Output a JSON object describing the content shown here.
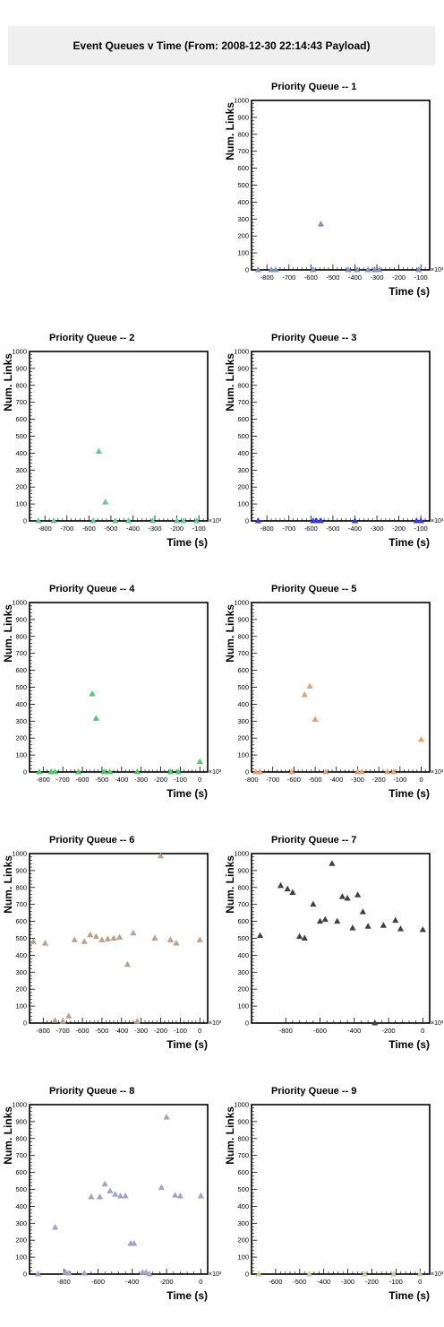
{
  "header": {
    "title": "Event Queues v Time (From: 2008-12-30 22:14:43 Payload)"
  },
  "chart_data": [
    {
      "type": "scatter",
      "title": "Priority Queue -- 1",
      "xlabel": "Time (s)",
      "ylabel": "Num. Links",
      "x_exponent": "×10³",
      "xlim": [
        -870,
        -60
      ],
      "ylim": [
        0,
        1000
      ],
      "xticks": [
        -800,
        -700,
        -600,
        -500,
        -400,
        -300,
        -200,
        -100
      ],
      "yticks": [
        0,
        100,
        200,
        300,
        400,
        500,
        600,
        700,
        800,
        900,
        1000
      ],
      "color": "#7f93bd",
      "x": [
        -840,
        -780,
        -760,
        -590,
        -555,
        -430,
        -390,
        -340,
        -310,
        -290,
        -110
      ],
      "y": [
        0,
        0,
        0,
        0,
        270,
        0,
        0,
        0,
        0,
        0,
        0
      ]
    },
    {
      "type": "scatter",
      "title": "Priority Queue -- 2",
      "xlabel": "Time (s)",
      "ylabel": "Num. Links",
      "x_exponent": "×10³",
      "xlim": [
        -870,
        -60
      ],
      "ylim": [
        0,
        1000
      ],
      "xticks": [
        -800,
        -700,
        -600,
        -500,
        -400,
        -300,
        -200,
        -100
      ],
      "yticks": [
        0,
        100,
        200,
        300,
        400,
        500,
        600,
        700,
        800,
        900,
        1000
      ],
      "color": "#6cc49a",
      "x": [
        -830,
        -760,
        -580,
        -555,
        -525,
        -480,
        -420,
        -310,
        -200,
        -170,
        -110
      ],
      "y": [
        0,
        0,
        0,
        410,
        110,
        0,
        0,
        0,
        0,
        0,
        0
      ]
    },
    {
      "type": "scatter",
      "title": "Priority Queue -- 3",
      "xlabel": "Time (s)",
      "ylabel": "Num. Links",
      "x_exponent": "×10³",
      "xlim": [
        -870,
        -60
      ],
      "ylim": [
        0,
        1000
      ],
      "xticks": [
        -800,
        -700,
        -600,
        -500,
        -400,
        -300,
        -200,
        -100
      ],
      "yticks": [
        0,
        100,
        200,
        300,
        400,
        500,
        600,
        700,
        800,
        900,
        1000
      ],
      "color": "#3a3ad0",
      "x": [
        -840,
        -590,
        -575,
        -555,
        -400,
        -120,
        -100
      ],
      "y": [
        0,
        0,
        0,
        0,
        0,
        0,
        0
      ]
    },
    {
      "type": "scatter",
      "title": "Priority Queue -- 4",
      "xlabel": "Time (s)",
      "ylabel": "Num. Links",
      "x_exponent": "×10³",
      "xlim": [
        -870,
        40
      ],
      "ylim": [
        0,
        1000
      ],
      "xticks": [
        -800,
        -700,
        -600,
        -500,
        -400,
        -300,
        -200,
        -100,
        0
      ],
      "yticks": [
        0,
        100,
        200,
        300,
        400,
        500,
        600,
        700,
        800,
        900,
        1000
      ],
      "color": "#4fc86a",
      "x": [
        -820,
        -760,
        -740,
        -620,
        -550,
        -530,
        -490,
        -460,
        -320,
        -150,
        -110,
        0
      ],
      "y": [
        0,
        0,
        0,
        0,
        460,
        315,
        0,
        0,
        0,
        0,
        0,
        60
      ]
    },
    {
      "type": "scatter",
      "title": "Priority Queue -- 5",
      "xlabel": "Time (s)",
      "ylabel": "Num. Links",
      "x_exponent": "×10³",
      "xlim": [
        -800,
        40
      ],
      "ylim": [
        0,
        1000
      ],
      "xticks": [
        -800,
        -700,
        -600,
        -500,
        -400,
        -300,
        -200,
        -100,
        0
      ],
      "yticks": [
        0,
        100,
        200,
        300,
        400,
        500,
        600,
        700,
        800,
        900,
        1000
      ],
      "color": "#e0a27a",
      "x": [
        -780,
        -760,
        -610,
        -550,
        -525,
        -500,
        -450,
        -300,
        -280,
        -160,
        -130,
        0
      ],
      "y": [
        0,
        0,
        0,
        455,
        505,
        310,
        0,
        0,
        0,
        0,
        0,
        190
      ]
    },
    {
      "type": "scatter",
      "title": "Priority Queue -- 6",
      "xlabel": "Time (s)",
      "ylabel": "Num. Links",
      "x_exponent": "×10³",
      "xlim": [
        -870,
        40
      ],
      "ylim": [
        0,
        1000
      ],
      "xticks": [
        -800,
        -700,
        -600,
        -500,
        -400,
        -300,
        -200,
        -100,
        0
      ],
      "yticks": [
        0,
        100,
        200,
        300,
        400,
        500,
        600,
        700,
        800,
        900,
        1000
      ],
      "color": "#b9a28e",
      "x": [
        -850,
        -790,
        -740,
        -700,
        -670,
        -640,
        -590,
        -560,
        -530,
        -500,
        -470,
        -440,
        -410,
        -370,
        -340,
        -320,
        -230,
        -200,
        -150,
        -120,
        0
      ],
      "y": [
        480,
        470,
        15,
        10,
        40,
        490,
        480,
        520,
        510,
        490,
        495,
        500,
        505,
        345,
        530,
        10,
        500,
        985,
        490,
        470,
        490
      ]
    },
    {
      "type": "scatter",
      "title": "Priority Queue -- 7",
      "xlabel": "Time (s)",
      "ylabel": "Num. Links",
      "x_exponent": "×10³",
      "xlim": [
        -1000,
        40
      ],
      "ylim": [
        0,
        1000
      ],
      "xticks": [
        -800,
        -600,
        -400,
        -200,
        0
      ],
      "yticks": [
        0,
        100,
        200,
        300,
        400,
        500,
        600,
        700,
        800,
        900,
        1000
      ],
      "color": "#404040",
      "x": [
        -950,
        -830,
        -790,
        -760,
        -720,
        -690,
        -640,
        -600,
        -570,
        -530,
        -500,
        -470,
        -440,
        -410,
        -380,
        -350,
        -320,
        -280,
        -230,
        -160,
        -130,
        0
      ],
      "y": [
        515,
        810,
        790,
        770,
        510,
        500,
        700,
        600,
        610,
        940,
        600,
        745,
        735,
        560,
        755,
        655,
        570,
        0,
        575,
        605,
        555,
        550
      ]
    },
    {
      "type": "scatter",
      "title": "Priority Queue -- 8",
      "xlabel": "Time (s)",
      "ylabel": "Num. Links",
      "x_exponent": "×10³",
      "xlim": [
        -1000,
        40
      ],
      "ylim": [
        0,
        1000
      ],
      "xticks": [
        -800,
        -600,
        -400,
        -200,
        0
      ],
      "yticks": [
        0,
        100,
        200,
        300,
        400,
        500,
        600,
        700,
        800,
        900,
        1000
      ],
      "color": "#a2a2c8",
      "x": [
        -950,
        -850,
        -790,
        -770,
        -680,
        -640,
        -590,
        -560,
        -530,
        -500,
        -470,
        -440,
        -410,
        -390,
        -340,
        -320,
        -300,
        -230,
        -200,
        -150,
        -120,
        0
      ],
      "y": [
        0,
        275,
        10,
        5,
        5,
        455,
        455,
        530,
        490,
        470,
        460,
        460,
        180,
        180,
        10,
        10,
        0,
        510,
        925,
        465,
        460,
        460
      ]
    },
    {
      "type": "scatter",
      "title": "Priority Queue -- 9",
      "xlabel": "Time (s)",
      "ylabel": "Num. Links",
      "x_exponent": "×10³",
      "xlim": [
        -700,
        40
      ],
      "ylim": [
        0,
        1000
      ],
      "xticks": [
        -600,
        -500,
        -400,
        -300,
        -200,
        -100,
        0
      ],
      "yticks": [
        0,
        100,
        200,
        300,
        400,
        500,
        600,
        700,
        800,
        900,
        1000
      ],
      "color": "#c8c8a0",
      "x": [
        -670,
        -460,
        -230,
        -110,
        0
      ],
      "y": [
        0,
        0,
        0,
        0,
        0
      ]
    }
  ]
}
